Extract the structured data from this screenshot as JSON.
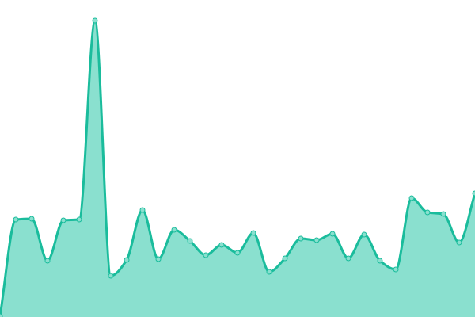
{
  "chart_data": {
    "type": "area",
    "x": [
      0,
      1,
      2,
      3,
      4,
      5,
      6,
      7,
      8,
      9,
      10,
      11,
      12,
      13,
      14,
      15,
      16,
      17,
      18,
      19,
      20,
      21,
      22,
      23,
      24,
      25,
      26,
      27,
      28,
      29,
      30
    ],
    "values": [
      1,
      123,
      124,
      71,
      122,
      123,
      374,
      52,
      72,
      135,
      73,
      110,
      96,
      78,
      91,
      81,
      106,
      57,
      74,
      99,
      97,
      105,
      74,
      104,
      71,
      60,
      150,
      132,
      130,
      94,
      156
    ],
    "ylim": [
      0,
      400
    ],
    "smooth": true,
    "markers": true,
    "grid": false,
    "axes": false,
    "colors": {
      "line": "#1abc9c",
      "fill": "#8ae0cf",
      "marker": "#8ae0cf"
    }
  }
}
